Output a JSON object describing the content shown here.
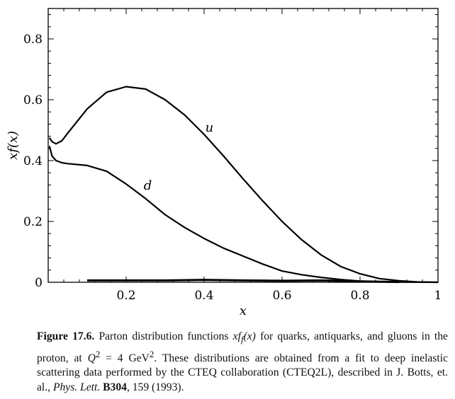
{
  "chart_data": {
    "type": "line",
    "xlabel": "x",
    "ylabel": "xf(x)",
    "xlim": [
      0,
      1
    ],
    "ylim": [
      0,
      0.9
    ],
    "xticks": [
      0.2,
      0.4,
      0.6,
      0.8,
      1
    ],
    "xtick_labels": [
      "0.2",
      "0.4",
      "0.6",
      "0.8",
      "1"
    ],
    "yticks": [
      0,
      0.2,
      0.4,
      0.6,
      0.8
    ],
    "ytick_labels": [
      "0",
      "0.2",
      "0.4",
      "0.6",
      "0.8"
    ],
    "grid": false,
    "series": [
      {
        "name": "u",
        "x": [
          0.003,
          0.01,
          0.02,
          0.035,
          0.05,
          0.1,
          0.15,
          0.2,
          0.25,
          0.3,
          0.35,
          0.4,
          0.45,
          0.5,
          0.55,
          0.6,
          0.65,
          0.7,
          0.75,
          0.8,
          0.85,
          0.9,
          0.95,
          1.0
        ],
        "y": [
          0.475,
          0.462,
          0.455,
          0.465,
          0.49,
          0.57,
          0.625,
          0.643,
          0.635,
          0.6,
          0.55,
          0.486,
          0.415,
          0.34,
          0.268,
          0.2,
          0.14,
          0.09,
          0.052,
          0.028,
          0.012,
          0.005,
          0.001,
          0
        ]
      },
      {
        "name": "d",
        "x": [
          0.003,
          0.01,
          0.02,
          0.035,
          0.05,
          0.1,
          0.15,
          0.2,
          0.25,
          0.3,
          0.35,
          0.4,
          0.45,
          0.5,
          0.55,
          0.6,
          0.65,
          0.7,
          0.75,
          0.8,
          0.85,
          0.9,
          1.0
        ],
        "y": [
          0.448,
          0.415,
          0.4,
          0.393,
          0.39,
          0.384,
          0.365,
          0.323,
          0.275,
          0.222,
          0.18,
          0.144,
          0.112,
          0.086,
          0.06,
          0.037,
          0.025,
          0.016,
          0.009,
          0.004,
          0.002,
          0.001,
          0
        ]
      },
      {
        "x": [
          0.1,
          0.2,
          0.3,
          0.4,
          0.5,
          0.6,
          0.7,
          0.8,
          0.9
        ],
        "y": [
          0.006,
          0.006,
          0.006,
          0.008,
          0.006,
          0.005,
          0.006,
          0.003,
          0.001
        ]
      }
    ]
  },
  "caption": {
    "label": "Figure 17.6.",
    "text1": " Parton distribution functions ",
    "math1": "xf",
    "math1_sub": "f",
    "math1_end": "(x)",
    "text2": " for quarks, antiquarks, and gluons in the proton, at ",
    "math2": "Q",
    "math2_sup": "2",
    "text3": " = 4 GeV",
    "text3_sup": "2",
    "text4": ". These distributions are obtained from a fit to deep inelastic scattering data performed by the CTEQ collaboration (CTEQ2L), described in J. Botts, et. al., ",
    "journal": "Phys. Lett.",
    "volume": "B304",
    "text5": ", 159 (1993)."
  }
}
